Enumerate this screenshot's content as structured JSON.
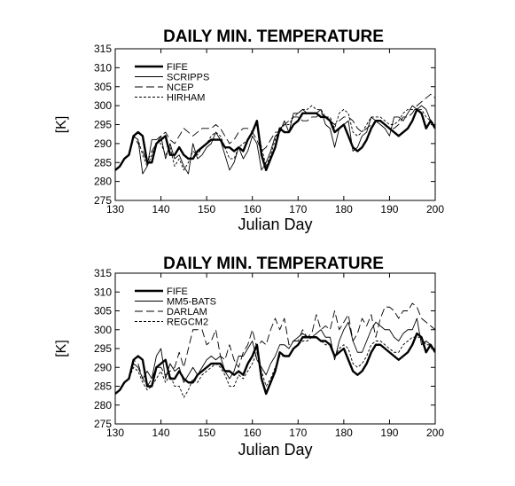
{
  "chart_data": [
    {
      "type": "line",
      "title": "DAILY MIN. TEMPERATURE",
      "xlabel": "Julian Day",
      "ylabel": "[K]",
      "xlim": [
        130,
        200
      ],
      "ylim": [
        275,
        315
      ],
      "xticks": [
        130,
        140,
        150,
        160,
        170,
        180,
        190,
        200
      ],
      "yticks": [
        275,
        280,
        285,
        290,
        295,
        300,
        305,
        310,
        315
      ],
      "grid": false,
      "legend_position": "top-left",
      "x": [
        130,
        131,
        132,
        133,
        134,
        135,
        136,
        137,
        138,
        139,
        140,
        141,
        142,
        143,
        144,
        145,
        146,
        147,
        148,
        149,
        150,
        151,
        152,
        153,
        154,
        155,
        156,
        157,
        158,
        159,
        160,
        161,
        162,
        163,
        164,
        165,
        166,
        167,
        168,
        169,
        170,
        171,
        172,
        173,
        174,
        175,
        176,
        177,
        178,
        179,
        180,
        181,
        182,
        183,
        184,
        185,
        186,
        187,
        188,
        189,
        190,
        191,
        192,
        193,
        194,
        195,
        196,
        197,
        198,
        199,
        200
      ],
      "series": [
        {
          "name": "FIFE",
          "style": "thick-solid",
          "values": [
            283,
            284,
            286,
            287,
            292,
            293,
            292,
            285,
            285,
            290,
            291,
            292,
            287,
            287,
            289,
            287,
            286,
            286,
            288,
            289,
            290,
            291,
            291,
            291,
            289,
            289,
            288,
            289,
            288,
            291,
            293,
            296,
            287,
            283,
            286,
            289,
            294,
            293,
            293,
            295,
            296,
            298,
            298,
            298,
            298,
            297,
            297,
            296,
            293,
            294,
            295,
            292,
            289,
            288,
            289,
            291,
            294,
            296,
            296,
            295,
            294,
            293,
            292,
            293,
            294,
            296,
            299,
            298,
            294,
            296,
            294
          ]
        },
        {
          "name": "SCRIPPS",
          "style": "thin-solid",
          "values": [
            283,
            284,
            286,
            287,
            292,
            291,
            282,
            284,
            291,
            291,
            292,
            286,
            290,
            286,
            287,
            284,
            282,
            290,
            286,
            287,
            289,
            290,
            293,
            291,
            287,
            283,
            285,
            289,
            286,
            288,
            292,
            290,
            283,
            285,
            288,
            292,
            293,
            296,
            293,
            298,
            298,
            299,
            298,
            298,
            298,
            299,
            295,
            294,
            289,
            294,
            295,
            296,
            288,
            289,
            292,
            293,
            297,
            296,
            295,
            294,
            292,
            297,
            297,
            296,
            298,
            300,
            299,
            300,
            299,
            296,
            294
          ]
        },
        {
          "name": "NCEP",
          "style": "long-dash",
          "values": [
            283,
            284,
            286,
            287,
            292,
            290,
            288,
            285,
            288,
            290,
            292,
            293,
            291,
            290,
            292,
            294,
            293,
            292,
            293,
            294,
            294,
            294,
            295,
            294,
            292,
            290,
            291,
            293,
            294,
            294,
            293,
            291,
            288,
            289,
            291,
            293,
            293,
            295,
            296,
            297,
            297,
            296,
            296,
            297,
            297,
            298,
            297,
            296,
            295,
            296,
            297,
            297,
            296,
            294,
            293,
            294,
            295,
            296,
            296,
            295,
            294,
            294,
            295,
            297,
            297,
            298,
            300,
            301,
            302,
            303,
            302
          ]
        },
        {
          "name": "HIRHAM",
          "style": "short-dash",
          "values": [
            283,
            284,
            286,
            287,
            292,
            291,
            287,
            284,
            287,
            290,
            290,
            287,
            289,
            284,
            286,
            283,
            285,
            288,
            287,
            289,
            290,
            292,
            293,
            292,
            289,
            286,
            286,
            289,
            290,
            291,
            293,
            295,
            289,
            284,
            287,
            291,
            294,
            295,
            295,
            297,
            298,
            299,
            299,
            300,
            299,
            299,
            297,
            297,
            294,
            298,
            299,
            298,
            293,
            292,
            293,
            295,
            297,
            297,
            297,
            296,
            295,
            295,
            296,
            298,
            299,
            299,
            299,
            299,
            297,
            296,
            295
          ]
        }
      ]
    },
    {
      "type": "line",
      "title": "DAILY MIN. TEMPERATURE",
      "xlabel": "Julian Day",
      "ylabel": "[K]",
      "xlim": [
        130,
        200
      ],
      "ylim": [
        275,
        315
      ],
      "xticks": [
        130,
        140,
        150,
        160,
        170,
        180,
        190,
        200
      ],
      "yticks": [
        275,
        280,
        285,
        290,
        295,
        300,
        305,
        310,
        315
      ],
      "grid": false,
      "legend_position": "top-left",
      "x": [
        130,
        131,
        132,
        133,
        134,
        135,
        136,
        137,
        138,
        139,
        140,
        141,
        142,
        143,
        144,
        145,
        146,
        147,
        148,
        149,
        150,
        151,
        152,
        153,
        154,
        155,
        156,
        157,
        158,
        159,
        160,
        161,
        162,
        163,
        164,
        165,
        166,
        167,
        168,
        169,
        170,
        171,
        172,
        173,
        174,
        175,
        176,
        177,
        178,
        179,
        180,
        181,
        182,
        183,
        184,
        185,
        186,
        187,
        188,
        189,
        190,
        191,
        192,
        193,
        194,
        195,
        196,
        197,
        198,
        199,
        200
      ],
      "series": [
        {
          "name": "FIFE",
          "style": "thick-solid",
          "values": [
            283,
            284,
            286,
            287,
            292,
            293,
            292,
            285,
            285,
            290,
            291,
            292,
            287,
            287,
            289,
            287,
            286,
            286,
            288,
            289,
            290,
            291,
            291,
            291,
            289,
            289,
            288,
            289,
            288,
            291,
            293,
            296,
            287,
            283,
            286,
            289,
            294,
            293,
            293,
            295,
            296,
            298,
            298,
            298,
            298,
            297,
            297,
            296,
            293,
            294,
            295,
            292,
            289,
            288,
            289,
            291,
            294,
            296,
            296,
            295,
            294,
            293,
            292,
            293,
            294,
            296,
            299,
            298,
            294,
            296,
            294
          ]
        },
        {
          "name": "MM5-BATS",
          "style": "thin-solid",
          "values": [
            283,
            284,
            286,
            287,
            291,
            290,
            287,
            289,
            287,
            293,
            295,
            287,
            291,
            289,
            290,
            286,
            288,
            290,
            288,
            290,
            292,
            293,
            292,
            293,
            289,
            287,
            289,
            293,
            293,
            295,
            297,
            292,
            290,
            288,
            291,
            293,
            296,
            296,
            295,
            297,
            298,
            299,
            298,
            298,
            299,
            300,
            298,
            298,
            292,
            297,
            300,
            302,
            297,
            294,
            294,
            297,
            300,
            302,
            301,
            300,
            300,
            298,
            297,
            299,
            300,
            300,
            303,
            296,
            297,
            296,
            294
          ]
        },
        {
          "name": "DARLAM",
          "style": "long-dash",
          "values": [
            283,
            284,
            286,
            287,
            292,
            291,
            287,
            285,
            287,
            290,
            290,
            288,
            289,
            290,
            294,
            290,
            295,
            300,
            300,
            300,
            296,
            297,
            300,
            293,
            292,
            296,
            292,
            290,
            294,
            296,
            300,
            295,
            297,
            296,
            300,
            303,
            300,
            303,
            296,
            297,
            297,
            300,
            298,
            299,
            304,
            300,
            301,
            300,
            305,
            300,
            302,
            304,
            297,
            299,
            303,
            301,
            304,
            298,
            303,
            306,
            306,
            305,
            303,
            305,
            305,
            307,
            306,
            303,
            302,
            301,
            300
          ]
        },
        {
          "name": "REGCM2",
          "style": "short-dash",
          "values": [
            283,
            284,
            286,
            287,
            290,
            289,
            286,
            284,
            285,
            287,
            289,
            286,
            288,
            285,
            285,
            282,
            284,
            287,
            286,
            288,
            289,
            290,
            291,
            290,
            288,
            285,
            285,
            288,
            287,
            289,
            291,
            294,
            289,
            285,
            287,
            290,
            293,
            293,
            293,
            295,
            296,
            297,
            297,
            298,
            298,
            297,
            296,
            296,
            293,
            295,
            296,
            295,
            291,
            290,
            291,
            293,
            296,
            297,
            297,
            296,
            295,
            294,
            294,
            296,
            297,
            298,
            298,
            298,
            296,
            296,
            294
          ]
        }
      ]
    }
  ]
}
